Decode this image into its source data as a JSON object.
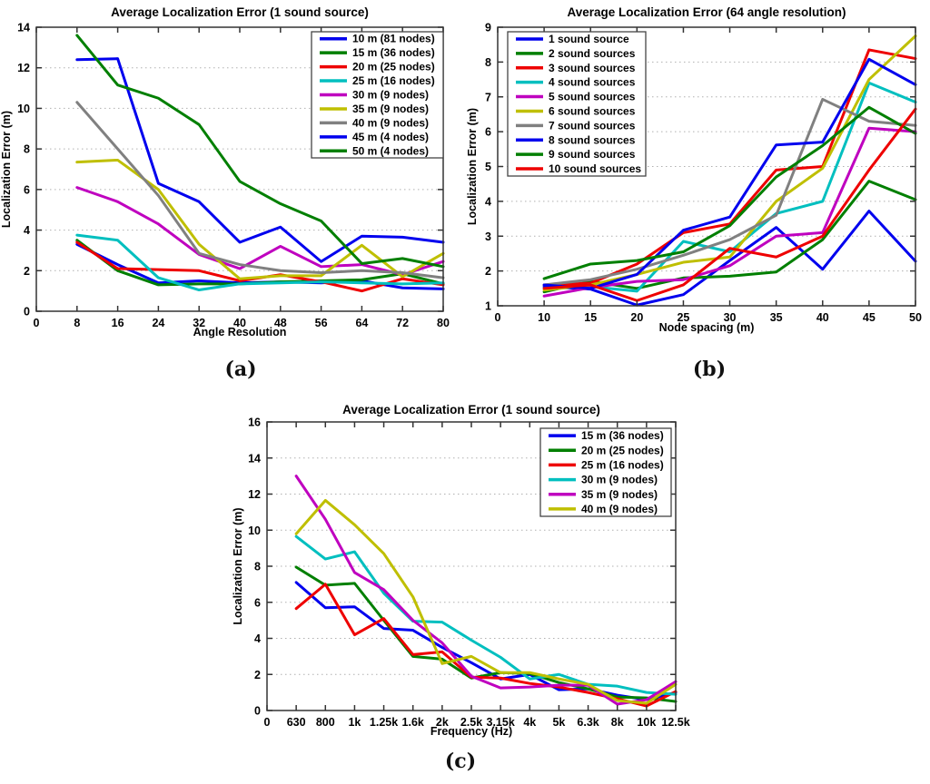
{
  "figure": {
    "sublabels": {
      "a": "(a)",
      "b": "(b)",
      "c": "(c)"
    }
  },
  "colors": {
    "blue": "#0000EE",
    "green": "#007F00",
    "red": "#EE0000",
    "cyan": "#00BFBF",
    "magenta": "#BF00BF",
    "yellow": "#BFBF00",
    "gray": "#808080",
    "grid": "#B0B0B0",
    "axis": "#333333",
    "text": "#000000"
  },
  "chart_data": [
    {
      "id": "a",
      "type": "line",
      "title": "Average Localization Error (1 sound source)",
      "xlabel": "Angle Resolution",
      "ylabel": "Localization Error (m)",
      "x_tick_labels": [
        "0",
        "8",
        "16",
        "24",
        "32",
        "40",
        "48",
        "56",
        "64",
        "72",
        "80"
      ],
      "y_ticks": [
        0,
        2,
        4,
        6,
        8,
        10,
        12,
        14
      ],
      "ylim": [
        0,
        14
      ],
      "grid": true,
      "legend_position": "top-right",
      "series": [
        {
          "name": "10 m (81 nodes)",
          "color": "blue",
          "values": [
            3.3,
            2.3,
            1.4,
            1.5,
            1.4,
            1.45,
            1.4,
            1.5,
            1.15,
            1.1
          ]
        },
        {
          "name": "15 m (36 nodes)",
          "color": "green",
          "values": [
            3.5,
            2.0,
            1.3,
            1.35,
            1.35,
            1.45,
            1.5,
            1.55,
            1.85,
            1.35
          ]
        },
        {
          "name": "20 m (25 nodes)",
          "color": "red",
          "values": [
            3.4,
            2.1,
            2.05,
            2.0,
            1.5,
            1.8,
            1.45,
            1.0,
            1.6,
            1.3
          ]
        },
        {
          "name": "25 m (16 nodes)",
          "color": "cyan",
          "values": [
            3.75,
            3.5,
            1.65,
            1.05,
            1.35,
            1.4,
            1.45,
            1.4,
            1.35,
            1.4
          ]
        },
        {
          "name": "30 m (9 nodes)",
          "color": "magenta",
          "values": [
            6.1,
            5.4,
            4.3,
            2.8,
            2.1,
            3.2,
            2.2,
            2.3,
            1.8,
            2.45
          ]
        },
        {
          "name": "35 m (9 nodes)",
          "color": "yellow",
          "values": [
            7.35,
            7.45,
            6.0,
            3.3,
            1.6,
            1.75,
            1.75,
            3.25,
            1.7,
            2.85
          ]
        },
        {
          "name": "40 m (9 nodes)",
          "color": "gray",
          "values": [
            10.3,
            8.0,
            5.7,
            2.85,
            2.3,
            2.0,
            1.9,
            2.0,
            1.9,
            1.65
          ]
        },
        {
          "name": "45 m (4 nodes)",
          "color": "blue",
          "values": [
            12.4,
            12.45,
            6.3,
            5.4,
            3.4,
            4.15,
            2.45,
            3.7,
            3.65,
            3.4
          ]
        },
        {
          "name": "50 m (4 nodes)",
          "color": "green",
          "values": [
            13.6,
            11.15,
            10.5,
            9.2,
            6.4,
            5.3,
            4.45,
            2.35,
            2.6,
            2.2
          ]
        }
      ]
    },
    {
      "id": "b",
      "type": "line",
      "title": "Average Localization Error (64 angle resolution)",
      "xlabel": "Node spacing (m)",
      "ylabel": "Localization Error (m)",
      "x_tick_labels": [
        "0",
        "10",
        "15",
        "20",
        "25",
        "30",
        "35",
        "40",
        "45",
        "50"
      ],
      "y_ticks": [
        1,
        2,
        3,
        4,
        5,
        6,
        7,
        8,
        9
      ],
      "ylim": [
        1,
        9
      ],
      "grid": true,
      "legend_position": "top-left",
      "series": [
        {
          "name": "1 sound source",
          "color": "blue",
          "values": [
            1.55,
            1.48,
            1.02,
            1.32,
            2.3,
            3.25,
            2.05,
            3.72,
            2.28
          ]
        },
        {
          "name": "2 sound sources",
          "color": "green",
          "values": [
            1.4,
            1.7,
            1.5,
            1.8,
            1.85,
            1.97,
            2.9,
            4.58,
            4.05
          ]
        },
        {
          "name": "3 sound sources",
          "color": "red",
          "values": [
            1.6,
            1.65,
            2.2,
            3.1,
            3.35,
            4.9,
            5.0,
            8.35,
            8.1
          ]
        },
        {
          "name": "4 sound sources",
          "color": "cyan",
          "values": [
            1.5,
            1.55,
            1.42,
            2.85,
            2.55,
            3.65,
            4.0,
            7.4,
            6.85
          ]
        },
        {
          "name": "5 sound sources",
          "color": "magenta",
          "values": [
            1.28,
            1.52,
            1.7,
            1.75,
            2.15,
            3.0,
            3.1,
            6.1,
            6.0
          ]
        },
        {
          "name": "6 sound sources",
          "color": "yellow",
          "values": [
            1.45,
            1.6,
            1.9,
            2.25,
            2.4,
            4.0,
            4.95,
            7.5,
            8.75
          ]
        },
        {
          "name": "7 sound sources",
          "color": "gray",
          "values": [
            1.6,
            1.75,
            2.05,
            2.45,
            2.9,
            3.6,
            6.93,
            6.3,
            6.18
          ]
        },
        {
          "name": "8 sound sources",
          "color": "blue",
          "values": [
            1.6,
            1.5,
            1.9,
            3.17,
            3.55,
            5.62,
            5.7,
            8.08,
            7.35
          ]
        },
        {
          "name": "9 sound sources",
          "color": "green",
          "values": [
            1.78,
            2.2,
            2.3,
            2.55,
            3.3,
            4.7,
            5.6,
            6.7,
            5.95
          ]
        },
        {
          "name": "10 sound sources",
          "color": "red",
          "values": [
            1.5,
            1.6,
            1.15,
            1.6,
            2.65,
            2.4,
            3.0,
            4.9,
            6.65
          ]
        }
      ]
    },
    {
      "id": "c",
      "type": "line",
      "title": "Average Localization Error (1 sound source)",
      "xlabel": "Frequency (Hz)",
      "ylabel": "Localization Error (m)",
      "x_tick_labels": [
        "0",
        "630",
        "800",
        "1k",
        "1.25k",
        "1.6k",
        "2k",
        "2.5k",
        "3.15k",
        "4k",
        "5k",
        "6.3k",
        "8k",
        "10k",
        "12.5k"
      ],
      "y_ticks": [
        0,
        2,
        4,
        6,
        8,
        10,
        12,
        14,
        16
      ],
      "ylim": [
        0,
        16
      ],
      "grid": true,
      "legend_position": "top-right",
      "series": [
        {
          "name": "15 m (36 nodes)",
          "color": "blue",
          "values": [
            7.1,
            5.7,
            5.75,
            4.55,
            4.45,
            3.5,
            2.65,
            1.75,
            2.0,
            1.15,
            1.2,
            0.85,
            0.6,
            1.0
          ]
        },
        {
          "name": "20 m (25 nodes)",
          "color": "green",
          "values": [
            7.95,
            6.95,
            7.05,
            5.0,
            3.0,
            2.85,
            1.8,
            2.1,
            2.05,
            1.55,
            1.2,
            0.75,
            0.7,
            0.5
          ]
        },
        {
          "name": "25 m (16 nodes)",
          "color": "red",
          "values": [
            5.65,
            7.0,
            4.2,
            5.1,
            3.1,
            3.25,
            1.85,
            1.8,
            1.5,
            1.3,
            1.0,
            0.65,
            0.25,
            1.05
          ]
        },
        {
          "name": "30 m (9 nodes)",
          "color": "cyan",
          "values": [
            9.65,
            8.4,
            8.8,
            6.5,
            4.95,
            4.9,
            3.9,
            2.95,
            1.75,
            2.0,
            1.45,
            1.35,
            1.0,
            0.9
          ]
        },
        {
          "name": "35 m (9 nodes)",
          "color": "magenta",
          "values": [
            13.0,
            10.6,
            7.65,
            6.7,
            5.0,
            3.75,
            1.9,
            1.25,
            1.3,
            1.4,
            1.4,
            0.35,
            0.6,
            1.6
          ]
        },
        {
          "name": "40 m (9 nodes)",
          "color": "yellow",
          "values": [
            9.8,
            11.65,
            10.3,
            8.7,
            6.3,
            2.6,
            3.0,
            2.1,
            2.1,
            1.75,
            1.45,
            0.55,
            0.4,
            1.45
          ]
        }
      ]
    }
  ]
}
